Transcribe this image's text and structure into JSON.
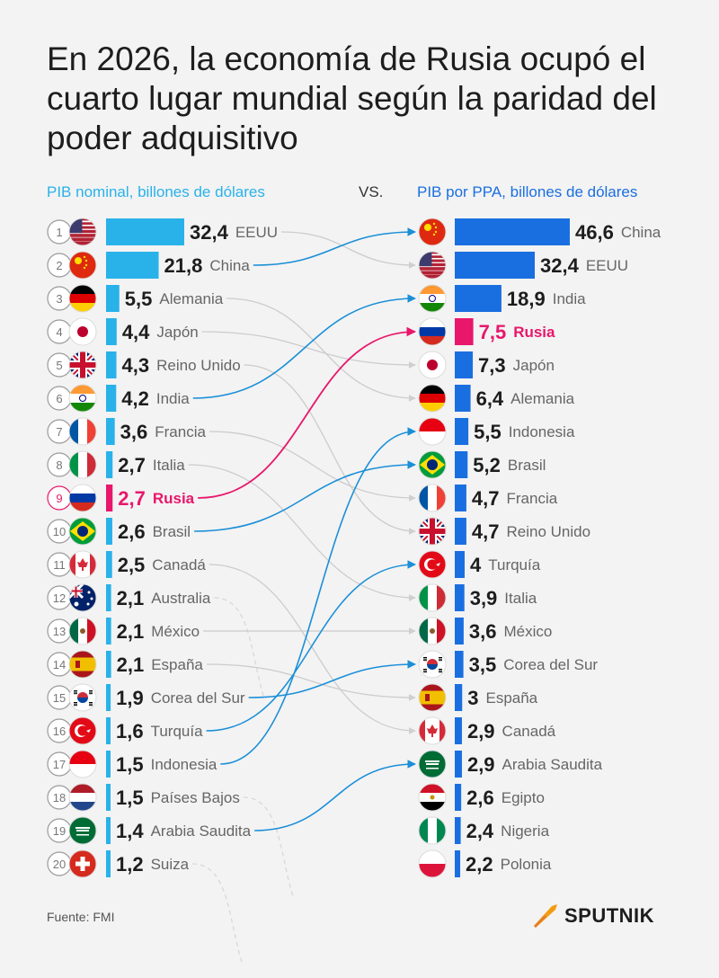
{
  "title": "En 2026, la economía de Rusia ocupó el cuarto lugar mundial según la paridad del poder adquisitivo",
  "headers": {
    "left": "PIB nominal, billones de dólares",
    "vs": "VS.",
    "right": "PIB por PPA, billones de dólares"
  },
  "source": "Fuente: FMI",
  "brand": "SPUTNIK",
  "colors": {
    "left_bar": "#29b2e9",
    "right_bar": "#1a6fe0",
    "highlight": "#e8176b",
    "rank_circle": "#9a9a9a",
    "connector": "#cccccc"
  },
  "chart_data": [
    {
      "type": "bar",
      "orientation": "horizontal",
      "title": "PIB nominal, billones de dólares",
      "ranks": [
        1,
        2,
        3,
        4,
        5,
        6,
        7,
        8,
        9,
        10,
        11,
        12,
        13,
        14,
        15,
        16,
        17,
        18,
        19,
        20
      ],
      "categories": [
        "EEUU",
        "China",
        "Alemania",
        "Japón",
        "Reino Unido",
        "India",
        "Francia",
        "Italia",
        "Rusia",
        "Brasil",
        "Canadá",
        "Australia",
        "México",
        "España",
        "Corea del Sur",
        "Turquía",
        "Indonesia",
        "Países Bajos",
        "Arabia Saudita",
        "Suiza"
      ],
      "flags": [
        "us-flag-icon",
        "cn-flag-icon",
        "de-flag-icon",
        "jp-flag-icon",
        "gb-flag-icon",
        "in-flag-icon",
        "fr-flag-icon",
        "it-flag-icon",
        "ru-flag-icon",
        "br-flag-icon",
        "ca-flag-icon",
        "au-flag-icon",
        "mx-flag-icon",
        "es-flag-icon",
        "kr-flag-icon",
        "tr-flag-icon",
        "id-flag-icon",
        "nl-flag-icon",
        "sa-flag-icon",
        "ch-flag-icon"
      ],
      "values": [
        32.4,
        21.8,
        5.5,
        4.4,
        4.3,
        4.2,
        3.6,
        2.7,
        2.7,
        2.6,
        2.5,
        2.1,
        2.1,
        2.1,
        1.9,
        1.6,
        1.5,
        1.5,
        1.4,
        1.2
      ],
      "labels": [
        "32,4",
        "21,8",
        "5,5",
        "4,4",
        "4,3",
        "4,2",
        "3,6",
        "2,7",
        "2,7",
        "2,6",
        "2,5",
        "2,1",
        "2,1",
        "2,1",
        "1,9",
        "1,6",
        "1,5",
        "1,5",
        "1,4",
        "1,2"
      ],
      "highlight": "Rusia"
    },
    {
      "type": "bar",
      "orientation": "horizontal",
      "title": "PIB por PPA, billones de dólares",
      "categories": [
        "China",
        "EEUU",
        "India",
        "Rusia",
        "Japón",
        "Alemania",
        "Indonesia",
        "Brasil",
        "Francia",
        "Reino Unido",
        "Turquía",
        "Italia",
        "México",
        "Corea del Sur",
        "España",
        "Canadá",
        "Arabia Saudita",
        "Egipto",
        "Nigeria",
        "Polonia"
      ],
      "flags": [
        "cn-flag-icon",
        "us-flag-icon",
        "in-flag-icon",
        "ru-flag-icon",
        "jp-flag-icon",
        "de-flag-icon",
        "id-flag-icon",
        "br-flag-icon",
        "fr-flag-icon",
        "gb-flag-icon",
        "tr-flag-icon",
        "it-flag-icon",
        "mx-flag-icon",
        "kr-flag-icon",
        "es-flag-icon",
        "ca-flag-icon",
        "sa-flag-icon",
        "eg-flag-icon",
        "ng-flag-icon",
        "pl-flag-icon"
      ],
      "values": [
        46.6,
        32.4,
        18.9,
        7.5,
        7.3,
        6.4,
        5.5,
        5.2,
        4.7,
        4.7,
        4,
        3.9,
        3.6,
        3.5,
        3,
        2.9,
        2.9,
        2.6,
        2.4,
        2.2
      ],
      "labels": [
        "46,6",
        "32,4",
        "18,9",
        "7,5",
        "7,3",
        "6,4",
        "5,5",
        "5,2",
        "4,7",
        "4,7",
        "4",
        "3,9",
        "3,6",
        "3,5",
        "3",
        "2,9",
        "2,9",
        "2,6",
        "2,4",
        "2,2"
      ],
      "highlight": "Rusia"
    }
  ],
  "connections": [
    {
      "from": "EEUU",
      "to": "EEUU",
      "style": "gray"
    },
    {
      "from": "China",
      "to": "China",
      "style": "blue"
    },
    {
      "from": "Alemania",
      "to": "Alemania",
      "style": "gray"
    },
    {
      "from": "Japón",
      "to": "Japón",
      "style": "gray"
    },
    {
      "from": "Reino Unido",
      "to": "Reino Unido",
      "style": "gray"
    },
    {
      "from": "India",
      "to": "India",
      "style": "blue"
    },
    {
      "from": "Francia",
      "to": "Francia",
      "style": "gray"
    },
    {
      "from": "Italia",
      "to": "Italia",
      "style": "gray"
    },
    {
      "from": "Rusia",
      "to": "Rusia",
      "style": "pink"
    },
    {
      "from": "Brasil",
      "to": "Brasil",
      "style": "blue"
    },
    {
      "from": "Canadá",
      "to": "Canadá",
      "style": "gray"
    },
    {
      "from": "Australia",
      "to": null,
      "style": "dashed"
    },
    {
      "from": "México",
      "to": "México",
      "style": "gray"
    },
    {
      "from": "España",
      "to": "España",
      "style": "gray"
    },
    {
      "from": "Corea del Sur",
      "to": "Corea del Sur",
      "style": "blue"
    },
    {
      "from": "Turquía",
      "to": "Turquía",
      "style": "blue"
    },
    {
      "from": "Indonesia",
      "to": "Indonesia",
      "style": "blue"
    },
    {
      "from": "Países Bajos",
      "to": null,
      "style": "dashed"
    },
    {
      "from": "Arabia Saudita",
      "to": "Arabia Saudita",
      "style": "blue"
    },
    {
      "from": "Suiza",
      "to": null,
      "style": "dashed"
    }
  ]
}
